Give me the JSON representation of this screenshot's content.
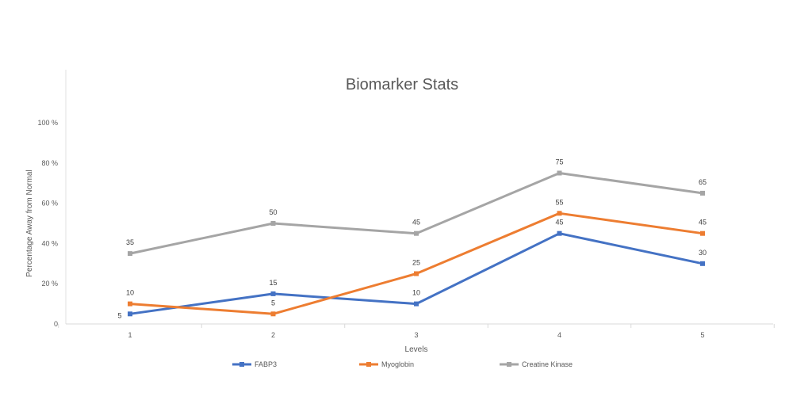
{
  "chart_data": {
    "type": "line",
    "title": "Biomarker Stats",
    "xlabel": "Levels",
    "ylabel": "Percentage Away from Normal",
    "categories": [
      "1",
      "2",
      "3",
      "4",
      "5"
    ],
    "ylim": [
      0,
      100
    ],
    "yticks": [
      {
        "value": 0,
        "label": "0"
      },
      {
        "value": 20,
        "label": "20 %"
      },
      {
        "value": 40,
        "label": "40 %"
      },
      {
        "value": 60,
        "label": "60 %"
      },
      {
        "value": 80,
        "label": "80 %"
      },
      {
        "value": 100,
        "label": "100 %"
      }
    ],
    "grid": false,
    "legend_position": "bottom",
    "series": [
      {
        "name": "FABP3",
        "color": "#4472C4",
        "values": [
          5,
          15,
          10,
          45,
          30
        ]
      },
      {
        "name": "Myoglobin",
        "color": "#ED7D31",
        "values": [
          10,
          5,
          25,
          55,
          45
        ]
      },
      {
        "name": "Creatine Kinase",
        "color": "#A5A5A5",
        "values": [
          35,
          50,
          45,
          75,
          65
        ]
      }
    ]
  }
}
